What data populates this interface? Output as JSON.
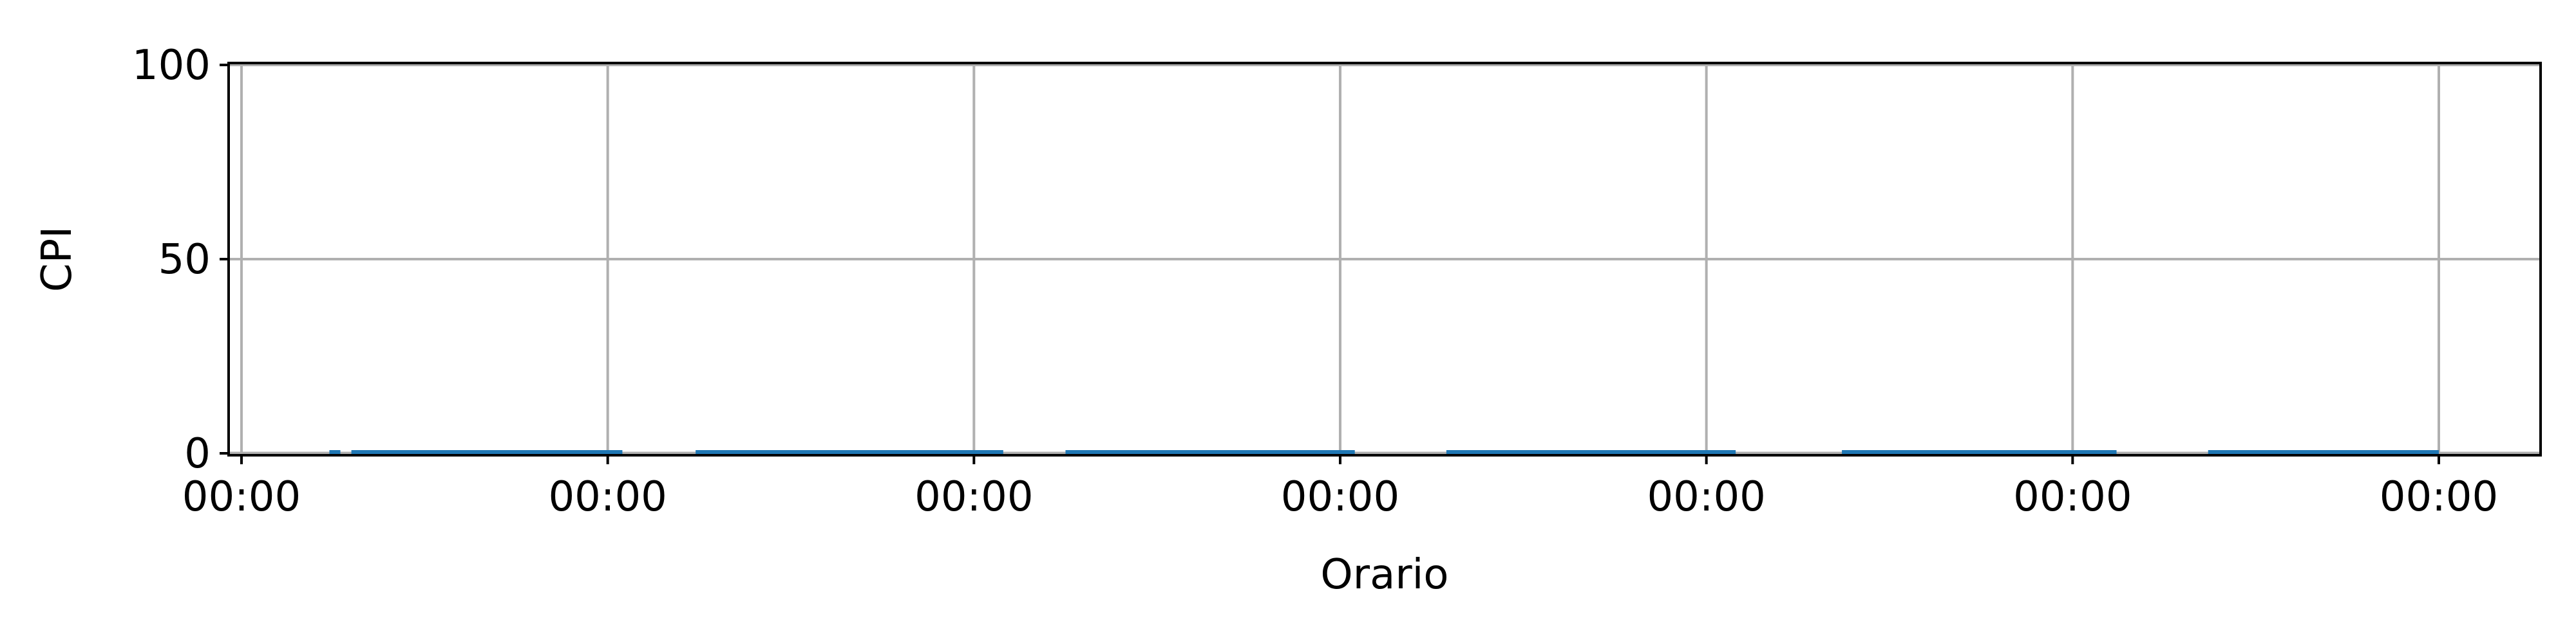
{
  "chart_data": {
    "type": "line",
    "title": "",
    "xlabel": "Orario",
    "ylabel": "CPI",
    "ylim": [
      0,
      100
    ],
    "yticks": [
      0,
      50,
      100
    ],
    "xticks": [
      "00:00",
      "00:00",
      "00:00",
      "00:00",
      "00:00",
      "00:00",
      "00:00"
    ],
    "grid": true,
    "legend": "none",
    "series": [
      {
        "color": "#1f77b4",
        "segments": [
          [
            0.24,
            0.27
          ],
          [
            0.3,
            1.04
          ],
          [
            1.24,
            2.08
          ],
          [
            2.25,
            3.04
          ],
          [
            3.29,
            4.08
          ],
          [
            4.37,
            5.12
          ],
          [
            5.37,
            6.0
          ]
        ],
        "value": 0
      }
    ]
  },
  "colors": {
    "line": "#1f77b4",
    "grid": "#b0b0b0",
    "axis": "#000000"
  }
}
